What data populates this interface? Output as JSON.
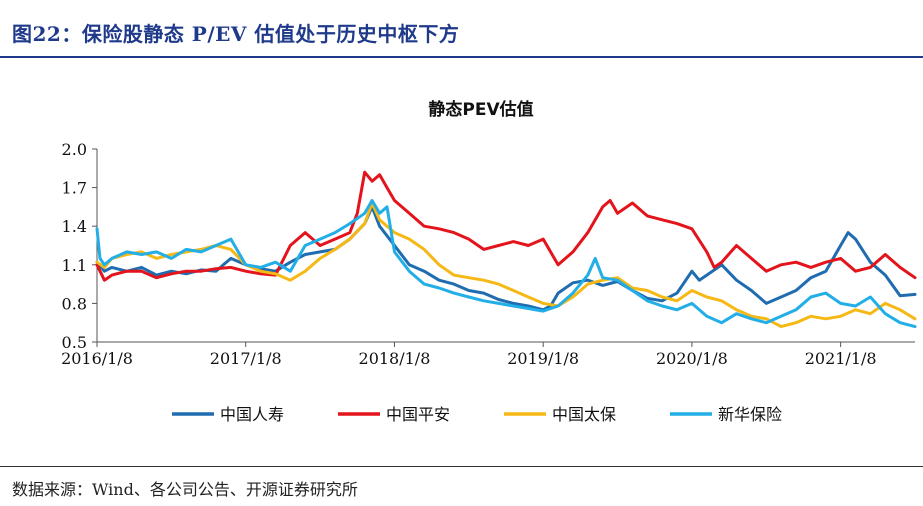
{
  "figure_title": "图22：保险股静态 P/EV 估值处于历史中枢下方",
  "source": "数据来源：Wind、各公司公告、开源证券研究所",
  "chart_data": {
    "type": "line",
    "title": "静态PEV估值",
    "xlabel": "",
    "ylabel": "",
    "ylim": [
      0.5,
      2.0
    ],
    "yticks": [
      "0.5",
      "0.8",
      "1.1",
      "1.4",
      "1.7",
      "2.0"
    ],
    "xticks": [
      "2016/1/8",
      "2017/1/8",
      "2018/1/8",
      "2019/1/8",
      "2020/1/8",
      "2021/1/8"
    ],
    "x_start": 2016.0,
    "x_end": 2021.5,
    "grid": false,
    "legend_position": "bottom",
    "series": [
      {
        "name": "中国人寿",
        "color": "#1F6CB0",
        "x": [
          2016.0,
          2016.05,
          2016.1,
          2016.2,
          2016.3,
          2016.4,
          2016.5,
          2016.6,
          2016.7,
          2016.8,
          2016.85,
          2016.9,
          2017.0,
          2017.1,
          2017.2,
          2017.3,
          2017.4,
          2017.5,
          2017.6,
          2017.7,
          2017.8,
          2017.85,
          2017.9,
          2018.0,
          2018.1,
          2018.2,
          2018.3,
          2018.4,
          2018.5,
          2018.6,
          2018.7,
          2018.8,
          2018.9,
          2019.0,
          2019.05,
          2019.1,
          2019.2,
          2019.3,
          2019.4,
          2019.5,
          2019.6,
          2019.7,
          2019.8,
          2019.9,
          2020.0,
          2020.05,
          2020.1,
          2020.2,
          2020.3,
          2020.4,
          2020.5,
          2020.6,
          2020.7,
          2020.8,
          2020.9,
          2021.0,
          2021.05,
          2021.1,
          2021.2,
          2021.3,
          2021.4,
          2021.5
        ],
        "y": [
          1.12,
          1.05,
          1.08,
          1.05,
          1.08,
          1.02,
          1.05,
          1.03,
          1.06,
          1.05,
          1.1,
          1.15,
          1.1,
          1.07,
          1.05,
          1.12,
          1.18,
          1.2,
          1.22,
          1.3,
          1.42,
          1.55,
          1.4,
          1.25,
          1.1,
          1.05,
          0.98,
          0.95,
          0.9,
          0.88,
          0.83,
          0.8,
          0.78,
          0.75,
          0.78,
          0.88,
          0.96,
          0.98,
          0.94,
          0.97,
          0.9,
          0.84,
          0.82,
          0.88,
          1.05,
          0.98,
          1.02,
          1.1,
          0.98,
          0.9,
          0.8,
          0.85,
          0.9,
          1.0,
          1.05,
          1.25,
          1.35,
          1.3,
          1.12,
          1.02,
          0.86,
          0.87
        ]
      },
      {
        "name": "中国平安",
        "color": "#E3141B",
        "x": [
          2016.0,
          2016.05,
          2016.1,
          2016.2,
          2016.3,
          2016.4,
          2016.5,
          2016.6,
          2016.7,
          2016.8,
          2016.9,
          2017.0,
          2017.1,
          2017.2,
          2017.3,
          2017.4,
          2017.5,
          2017.6,
          2017.7,
          2017.75,
          2017.8,
          2017.85,
          2017.9,
          2017.95,
          2018.0,
          2018.1,
          2018.2,
          2018.3,
          2018.4,
          2018.5,
          2018.6,
          2018.7,
          2018.8,
          2018.9,
          2019.0,
          2019.05,
          2019.1,
          2019.2,
          2019.3,
          2019.4,
          2019.45,
          2019.5,
          2019.6,
          2019.7,
          2019.8,
          2019.9,
          2020.0,
          2020.1,
          2020.15,
          2020.2,
          2020.3,
          2020.4,
          2020.5,
          2020.6,
          2020.7,
          2020.8,
          2020.9,
          2021.0,
          2021.1,
          2021.2,
          2021.3,
          2021.4,
          2021.5
        ],
        "y": [
          1.1,
          0.98,
          1.02,
          1.05,
          1.05,
          1.0,
          1.03,
          1.05,
          1.05,
          1.07,
          1.08,
          1.05,
          1.03,
          1.02,
          1.25,
          1.35,
          1.25,
          1.3,
          1.35,
          1.5,
          1.82,
          1.75,
          1.8,
          1.7,
          1.6,
          1.5,
          1.4,
          1.38,
          1.35,
          1.3,
          1.22,
          1.25,
          1.28,
          1.25,
          1.3,
          1.2,
          1.1,
          1.2,
          1.35,
          1.55,
          1.6,
          1.5,
          1.58,
          1.48,
          1.45,
          1.42,
          1.38,
          1.2,
          1.08,
          1.12,
          1.25,
          1.15,
          1.05,
          1.1,
          1.12,
          1.08,
          1.12,
          1.15,
          1.05,
          1.08,
          1.18,
          1.08,
          1.0
        ]
      },
      {
        "name": "中国太保",
        "color": "#F6B815",
        "x": [
          2016.0,
          2016.05,
          2016.1,
          2016.2,
          2016.3,
          2016.4,
          2016.5,
          2016.6,
          2016.7,
          2016.8,
          2016.9,
          2017.0,
          2017.1,
          2017.2,
          2017.3,
          2017.4,
          2017.5,
          2017.6,
          2017.7,
          2017.8,
          2017.85,
          2017.9,
          2018.0,
          2018.1,
          2018.2,
          2018.3,
          2018.4,
          2018.5,
          2018.6,
          2018.7,
          2018.8,
          2018.9,
          2019.0,
          2019.1,
          2019.2,
          2019.3,
          2019.4,
          2019.5,
          2019.6,
          2019.7,
          2019.8,
          2019.9,
          2020.0,
          2020.1,
          2020.2,
          2020.3,
          2020.4,
          2020.5,
          2020.6,
          2020.7,
          2020.8,
          2020.9,
          2021.0,
          2021.1,
          2021.2,
          2021.3,
          2021.4,
          2021.5
        ],
        "y": [
          1.12,
          1.08,
          1.15,
          1.18,
          1.2,
          1.15,
          1.18,
          1.2,
          1.22,
          1.25,
          1.22,
          1.1,
          1.05,
          1.03,
          0.98,
          1.05,
          1.15,
          1.22,
          1.3,
          1.42,
          1.58,
          1.45,
          1.35,
          1.3,
          1.22,
          1.1,
          1.02,
          1.0,
          0.98,
          0.95,
          0.9,
          0.85,
          0.8,
          0.78,
          0.85,
          0.95,
          0.98,
          1.0,
          0.92,
          0.9,
          0.85,
          0.82,
          0.9,
          0.85,
          0.82,
          0.75,
          0.7,
          0.68,
          0.62,
          0.65,
          0.7,
          0.68,
          0.7,
          0.75,
          0.72,
          0.8,
          0.75,
          0.68
        ]
      },
      {
        "name": "新华保险",
        "color": "#22AEE6",
        "x": [
          2016.0,
          2016.02,
          2016.05,
          2016.1,
          2016.2,
          2016.3,
          2016.4,
          2016.5,
          2016.6,
          2016.7,
          2016.8,
          2016.9,
          2017.0,
          2017.1,
          2017.2,
          2017.3,
          2017.4,
          2017.5,
          2017.6,
          2017.7,
          2017.8,
          2017.85,
          2017.9,
          2017.95,
          2018.0,
          2018.1,
          2018.2,
          2018.3,
          2018.4,
          2018.5,
          2018.6,
          2018.7,
          2018.8,
          2018.9,
          2019.0,
          2019.1,
          2019.2,
          2019.3,
          2019.35,
          2019.4,
          2019.5,
          2019.6,
          2019.7,
          2019.8,
          2019.9,
          2020.0,
          2020.1,
          2020.2,
          2020.3,
          2020.4,
          2020.5,
          2020.6,
          2020.7,
          2020.8,
          2020.9,
          2021.0,
          2021.1,
          2021.2,
          2021.3,
          2021.4,
          2021.5
        ],
        "y": [
          1.38,
          1.15,
          1.1,
          1.15,
          1.2,
          1.18,
          1.2,
          1.15,
          1.22,
          1.2,
          1.25,
          1.3,
          1.1,
          1.08,
          1.12,
          1.05,
          1.25,
          1.3,
          1.35,
          1.42,
          1.5,
          1.6,
          1.5,
          1.55,
          1.2,
          1.05,
          0.95,
          0.92,
          0.88,
          0.85,
          0.82,
          0.8,
          0.78,
          0.76,
          0.74,
          0.78,
          0.88,
          1.02,
          1.15,
          1.0,
          0.98,
          0.9,
          0.82,
          0.78,
          0.75,
          0.8,
          0.7,
          0.65,
          0.72,
          0.68,
          0.65,
          0.7,
          0.75,
          0.85,
          0.88,
          0.8,
          0.78,
          0.85,
          0.72,
          0.65,
          0.62
        ]
      }
    ]
  }
}
